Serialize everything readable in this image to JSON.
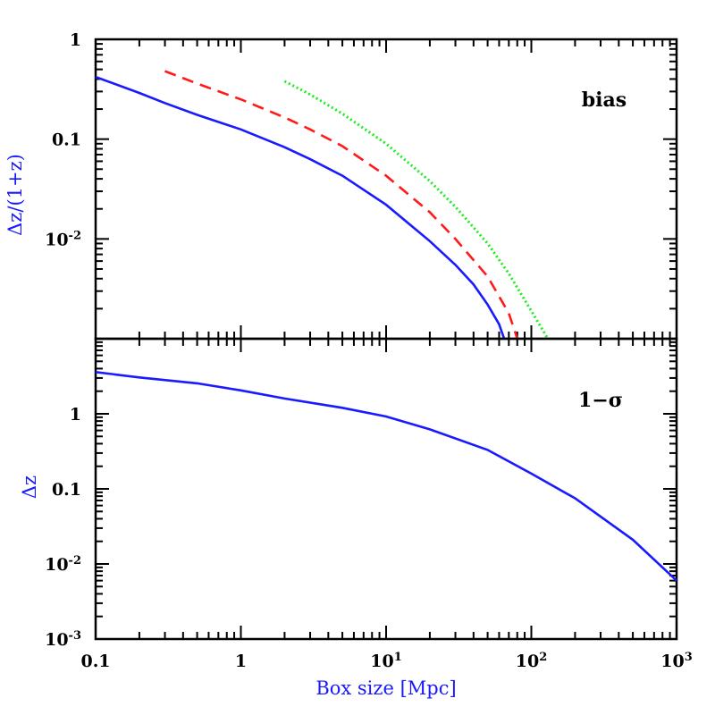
{
  "chart_data": [
    {
      "type": "line",
      "panel": "top",
      "ylabel": "Δz/(1+z)",
      "xlabel": "",
      "annotation": "bias",
      "xscale": "log",
      "yscale": "log",
      "xlim": [
        0.1,
        1000
      ],
      "ylim": [
        0.001,
        1
      ],
      "y_tick_labels": [
        {
          "value": 1,
          "label": "1",
          "exp": ""
        },
        {
          "value": 0.1,
          "label": "0.1",
          "exp": ""
        },
        {
          "value": 0.01,
          "label": "10",
          "exp": "-2"
        }
      ],
      "series": [
        {
          "color": "#1a1aff",
          "style": "solid",
          "x": [
            0.1,
            0.2,
            0.3,
            0.5,
            1,
            2,
            3,
            5,
            10,
            20,
            30,
            40,
            50,
            60,
            65
          ],
          "y": [
            0.42,
            0.29,
            0.23,
            0.175,
            0.125,
            0.083,
            0.063,
            0.043,
            0.022,
            0.0095,
            0.0055,
            0.0035,
            0.0022,
            0.0014,
            0.001
          ]
        },
        {
          "color": "#ff1a1a",
          "style": "dashed",
          "x": [
            0.3,
            0.5,
            1,
            2,
            3,
            5,
            10,
            20,
            30,
            50,
            70,
            80
          ],
          "y": [
            0.48,
            0.36,
            0.25,
            0.165,
            0.125,
            0.085,
            0.043,
            0.0185,
            0.01,
            0.0042,
            0.0018,
            0.001
          ]
        },
        {
          "color": "#1aee1a",
          "style": "dotted",
          "x": [
            2,
            3,
            5,
            10,
            20,
            30,
            50,
            70,
            100,
            130
          ],
          "y": [
            0.38,
            0.28,
            0.18,
            0.09,
            0.038,
            0.021,
            0.009,
            0.0045,
            0.0019,
            0.001
          ]
        }
      ]
    },
    {
      "type": "line",
      "panel": "bottom",
      "ylabel": "Δz",
      "xlabel": "Box size [Mpc]",
      "annotation": "1−σ",
      "xscale": "log",
      "yscale": "log",
      "xlim": [
        0.1,
        1000
      ],
      "ylim": [
        0.001,
        10
      ],
      "y_tick_labels": [
        {
          "value": 1,
          "label": "1",
          "exp": ""
        },
        {
          "value": 0.1,
          "label": "0.1",
          "exp": ""
        },
        {
          "value": 0.01,
          "label": "10",
          "exp": "-2"
        },
        {
          "value": 0.001,
          "label": "10",
          "exp": "-3"
        }
      ],
      "x_tick_labels": [
        {
          "value": 0.1,
          "label": "0.1",
          "exp": ""
        },
        {
          "value": 1,
          "label": "1",
          "exp": ""
        },
        {
          "value": 10,
          "label": "10",
          "exp": "1"
        },
        {
          "value": 100,
          "label": "10",
          "exp": "2"
        },
        {
          "value": 1000,
          "label": "10",
          "exp": "3"
        }
      ],
      "series": [
        {
          "color": "#1a1aff",
          "style": "solid",
          "x": [
            0.1,
            0.2,
            0.5,
            1,
            2,
            5,
            10,
            20,
            50,
            100,
            200,
            500,
            1000
          ],
          "y": [
            3.6,
            3.05,
            2.55,
            2.05,
            1.6,
            1.2,
            0.92,
            0.62,
            0.33,
            0.16,
            0.075,
            0.021,
            0.006
          ]
        }
      ]
    }
  ]
}
